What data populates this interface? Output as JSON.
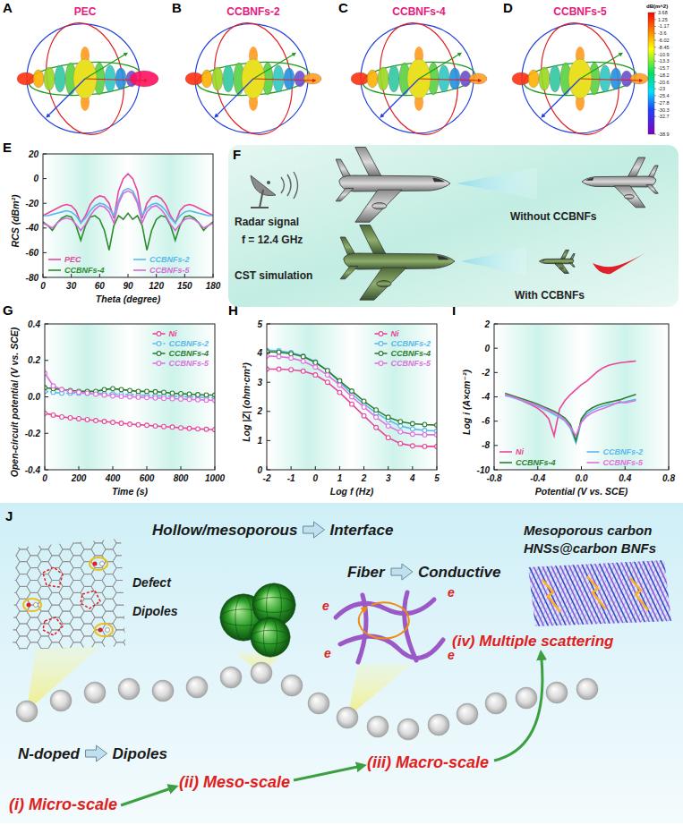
{
  "rcs_3d": {
    "panels": [
      {
        "panel": "A",
        "title": "PEC"
      },
      {
        "panel": "B",
        "title": "CCBNFs-2"
      },
      {
        "panel": "C",
        "title": "CCBNFs-4"
      },
      {
        "panel": "D",
        "title": "CCBNFs-5"
      }
    ],
    "colorbar": {
      "title": "dB(m^2)",
      "range": [
        -38.9,
        3.68
      ],
      "ticks": [
        3.68,
        1.25,
        -1.17,
        -3.6,
        -6.02,
        -8.45,
        -10.9,
        -13.3,
        -15.7,
        -18.2,
        -20.6,
        -23,
        -25.4,
        -27.8,
        -30.3,
        -32.7,
        -38.9
      ]
    }
  },
  "chart_data": [
    {
      "panel": "E",
      "type": "line",
      "x_label": "Theta (degree)",
      "y_label": "RCS (dBm²)",
      "x": [
        0,
        5,
        10,
        15,
        20,
        25,
        30,
        35,
        40,
        45,
        50,
        55,
        60,
        65,
        70,
        75,
        80,
        85,
        90,
        95,
        100,
        105,
        110,
        115,
        120,
        125,
        130,
        135,
        140,
        145,
        150,
        155,
        160,
        165,
        170,
        175,
        180
      ],
      "xlim": [
        0,
        180
      ],
      "xticks": [
        0,
        30,
        60,
        90,
        120,
        150,
        180
      ],
      "ylim": [
        -80,
        20
      ],
      "yticks": [
        -80,
        -60,
        -40,
        -20,
        0,
        20
      ],
      "legend": "bottom",
      "series": [
        {
          "name": "PEC",
          "color": "#e8479a",
          "values": [
            -30,
            -28,
            -26,
            -24,
            -22,
            -21,
            -22,
            -26,
            -36,
            -30,
            -21,
            -16,
            -14,
            -15,
            -20,
            -32,
            -10,
            0,
            4,
            0,
            -10,
            -32,
            -20,
            -15,
            -14,
            -16,
            -21,
            -30,
            -36,
            -26,
            -22,
            -21,
            -22,
            -24,
            -26,
            -28,
            -30
          ]
        },
        {
          "name": "CCBNFs-2",
          "color": "#5bb8ef",
          "values": [
            -30,
            -30,
            -29,
            -28,
            -27,
            -26,
            -27,
            -30,
            -36,
            -32,
            -26,
            -22,
            -20,
            -21,
            -24,
            -30,
            -18,
            -10,
            -8,
            -10,
            -18,
            -30,
            -24,
            -21,
            -20,
            -22,
            -26,
            -32,
            -36,
            -30,
            -27,
            -26,
            -27,
            -28,
            -29,
            -30,
            -30
          ]
        },
        {
          "name": "CCBNFs-4",
          "color": "#2e8b2e",
          "values": [
            -35,
            -38,
            -42,
            -36,
            -32,
            -30,
            -31,
            -38,
            -50,
            -38,
            -31,
            -30,
            -33,
            -42,
            -58,
            -38,
            -30,
            -33,
            -28,
            -33,
            -30,
            -38,
            -58,
            -42,
            -33,
            -30,
            -31,
            -38,
            -50,
            -38,
            -31,
            -30,
            -32,
            -36,
            -42,
            -38,
            -35
          ]
        },
        {
          "name": "CCBNFs-5",
          "color": "#d96ad9",
          "values": [
            -36,
            -38,
            -40,
            -36,
            -33,
            -32,
            -33,
            -37,
            -42,
            -37,
            -30,
            -25,
            -22,
            -23,
            -27,
            -36,
            -20,
            -12,
            -10,
            -12,
            -20,
            -36,
            -27,
            -23,
            -22,
            -25,
            -30,
            -37,
            -42,
            -37,
            -33,
            -32,
            -33,
            -36,
            -40,
            -38,
            -36
          ]
        }
      ]
    },
    {
      "panel": "G",
      "type": "line",
      "x_label": "Time (s)",
      "y_label": "Open-circuit potential (V vs. SCE)",
      "x": [
        0,
        50,
        100,
        150,
        200,
        250,
        300,
        350,
        400,
        450,
        500,
        550,
        600,
        650,
        700,
        750,
        800,
        850,
        900,
        950,
        1000
      ],
      "xlim": [
        0,
        1000
      ],
      "xticks": [
        0,
        200,
        400,
        600,
        800,
        1000
      ],
      "ylim": [
        -0.4,
        0.4
      ],
      "yticks": [
        -0.4,
        -0.2,
        {
          "value": 0,
          "label": "0.0"
        },
        0.2,
        0.4
      ],
      "legend": "top-right",
      "series": [
        {
          "name": "Ni",
          "color": "#e8479a",
          "marker": "circle",
          "values": [
            -0.09,
            -0.1,
            -0.11,
            -0.115,
            -0.12,
            -0.125,
            -0.13,
            -0.135,
            -0.14,
            -0.145,
            -0.15,
            -0.153,
            -0.156,
            -0.16,
            -0.163,
            -0.166,
            -0.17,
            -0.173,
            -0.176,
            -0.178,
            -0.18
          ]
        },
        {
          "name": "CCBNFs-2",
          "color": "#5bb8ef",
          "marker": "circle",
          "line_style": "dashed",
          "values": [
            0.03,
            0.025,
            0.02,
            0.02,
            0.02,
            0.02,
            0.02,
            0.018,
            0.016,
            0.014,
            0.012,
            0.01,
            0.008,
            0.006,
            0.005,
            0.003,
            0.002,
            0,
            -0.002,
            -0.004,
            -0.005
          ]
        },
        {
          "name": "CCBNFs-4",
          "color": "#2e7d32",
          "marker": "circle",
          "values": [
            0.05,
            0.045,
            0.04,
            0.035,
            0.03,
            0.03,
            0.03,
            0.04,
            0.045,
            0.04,
            0.035,
            0.03,
            0.03,
            0.028,
            0.025,
            0.02,
            0.018,
            0.015,
            0.012,
            0.01,
            0.01
          ]
        },
        {
          "name": "CCBNFs-5",
          "color": "#e070e0",
          "marker": "circle",
          "values": [
            0.13,
            0.06,
            0.04,
            0.03,
            0.025,
            0.02,
            0.015,
            0.01,
            0.005,
            0.002,
            0,
            -0.002,
            -0.004,
            -0.006,
            -0.008,
            -0.01,
            -0.012,
            -0.014,
            -0.016,
            -0.018,
            -0.02
          ]
        }
      ]
    },
    {
      "panel": "H",
      "type": "line",
      "x_label": "Log f (Hz)",
      "y_label": "Log |Z| (ohm·cm²)",
      "x": [
        -2,
        -1.5,
        -1,
        -0.5,
        0,
        0.5,
        1,
        1.5,
        2,
        2.5,
        3,
        3.5,
        4,
        4.5,
        5
      ],
      "xlim": [
        -2,
        5
      ],
      "xticks": [
        -2,
        -1,
        0,
        1,
        2,
        3,
        4,
        5
      ],
      "ylim": [
        0,
        5
      ],
      "yticks": [
        0,
        1,
        2,
        3,
        4,
        5
      ],
      "legend": "top-right",
      "series": [
        {
          "name": "Ni",
          "color": "#e8479a",
          "marker": "circle",
          "values": [
            3.45,
            3.45,
            3.43,
            3.38,
            3.25,
            3.0,
            2.65,
            2.25,
            1.85,
            1.45,
            1.1,
            0.9,
            0.82,
            0.8,
            0.8
          ]
        },
        {
          "name": "CCBNFs-2",
          "color": "#5bb8ef",
          "marker": "circle",
          "values": [
            4.1,
            4.08,
            4.02,
            3.9,
            3.7,
            3.4,
            3.0,
            2.6,
            2.25,
            1.95,
            1.7,
            1.5,
            1.4,
            1.35,
            1.33
          ]
        },
        {
          "name": "CCBNFs-4",
          "color": "#2e7d32",
          "marker": "circle",
          "values": [
            4.05,
            4.03,
            3.98,
            3.88,
            3.68,
            3.4,
            3.05,
            2.7,
            2.35,
            2.05,
            1.8,
            1.65,
            1.58,
            1.55,
            1.53
          ]
        },
        {
          "name": "CCBNFs-5",
          "color": "#e070e0",
          "marker": "circle",
          "values": [
            3.9,
            3.88,
            3.83,
            3.72,
            3.52,
            3.25,
            2.9,
            2.5,
            2.15,
            1.8,
            1.5,
            1.3,
            1.22,
            1.2,
            1.2
          ]
        }
      ]
    },
    {
      "panel": "I",
      "type": "line",
      "x_label": "Potential (V vs. SCE)",
      "y_label": "Log i (A×cm⁻²)",
      "x": [
        -0.7,
        -0.65,
        -0.6,
        -0.55,
        -0.5,
        -0.45,
        -0.4,
        -0.35,
        -0.3,
        -0.25,
        -0.2,
        -0.15,
        -0.1,
        -0.05,
        0,
        0.05,
        0.1,
        0.15,
        0.2,
        0.25,
        0.3,
        0.35,
        0.4,
        0.45,
        0.5
      ],
      "xlim": [
        -0.8,
        0.8
      ],
      "xticks": [
        -0.8,
        -0.4,
        {
          "value": 0,
          "label": "0.0"
        },
        0.4,
        0.8
      ],
      "ylim": [
        -10,
        2
      ],
      "yticks": [
        -10,
        -8,
        -6,
        -4,
        -2,
        0,
        2
      ],
      "legend": "bottom",
      "series": [
        {
          "name": "Ni",
          "color": "#e8479a",
          "values": [
            -3.8,
            -3.95,
            -4.1,
            -4.3,
            -4.5,
            -4.7,
            -4.95,
            -5.3,
            -5.8,
            -7.2,
            -5.0,
            -4.3,
            -3.8,
            -3.4,
            -3.0,
            -2.7,
            -2.3,
            -1.9,
            -1.6,
            -1.4,
            -1.3,
            -1.2,
            -1.15,
            -1.1,
            -1.05
          ]
        },
        {
          "name": "CCBNFs-2",
          "color": "#5bb8ef",
          "values": [
            -3.9,
            -4.0,
            -4.15,
            -4.3,
            -4.45,
            -4.6,
            -4.8,
            -5.0,
            -5.2,
            -5.45,
            -5.7,
            -6.0,
            -6.6,
            -7.8,
            -6.0,
            -5.4,
            -5.1,
            -4.9,
            -4.75,
            -4.65,
            -4.55,
            -4.5,
            -4.4,
            -4.3,
            -4.2
          ]
        },
        {
          "name": "CCBNFs-4",
          "color": "#2e7d32",
          "values": [
            -3.7,
            -3.85,
            -4.0,
            -4.15,
            -4.3,
            -4.45,
            -4.6,
            -4.8,
            -5.0,
            -5.2,
            -5.45,
            -5.75,
            -6.3,
            -7.6,
            -5.8,
            -5.2,
            -4.9,
            -4.7,
            -4.55,
            -4.45,
            -4.35,
            -4.25,
            -4.1,
            -3.95,
            -3.8
          ]
        },
        {
          "name": "CCBNFs-5",
          "color": "#e070e0",
          "values": [
            -3.8,
            -3.95,
            -4.1,
            -4.25,
            -4.4,
            -4.55,
            -4.7,
            -4.9,
            -5.1,
            -5.3,
            -5.55,
            -5.9,
            -6.5,
            -7.2,
            -6.1,
            -5.6,
            -5.3,
            -5.1,
            -4.95,
            -4.8,
            -4.6,
            -4.4,
            -4.5,
            -4.4,
            -4.3
          ]
        }
      ]
    }
  ],
  "schematic_f": {
    "panel": "F",
    "radar_label": "Radar signal",
    "frequency": "f = 12.4 GHz",
    "method": "CST simulation",
    "without": "Without CCBNFs",
    "with": "With CCBNFs"
  },
  "schematic_j": {
    "panel": "J",
    "stages": [
      {
        "label": "(i) Micro-scale",
        "concept": "N-doped",
        "effect": "Dipoles"
      },
      {
        "label": "(ii) Meso-scale",
        "concept": "Hollow/mesoporous",
        "effect": "Interface"
      },
      {
        "label": "(iii) Macro-scale",
        "concept": "Fiber",
        "effect": "Conductive"
      },
      {
        "label": "(iv) Multiple scattering",
        "material": [
          "Mesoporous carbon",
          "HNSs@carbon BNFs"
        ]
      }
    ],
    "lattice_labels": [
      "Defect",
      "Dipoles"
    ],
    "electron": "e"
  }
}
